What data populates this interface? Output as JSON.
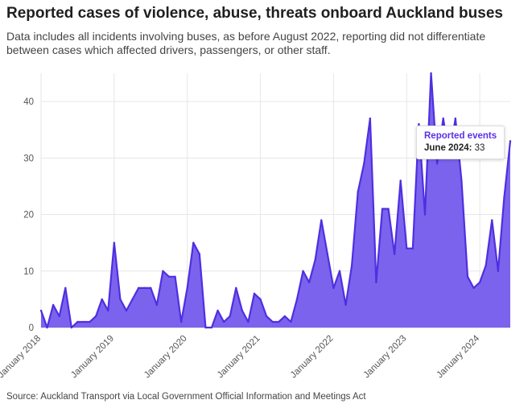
{
  "title": "Reported cases of violence, abuse, threats onboard Auckland buses",
  "subtitle": "Data includes all incidents involving buses, as before August 2022, reporting did not differentiate between cases which affected drivers, passengers, or other staff.",
  "source": "Source: Auckland Transport via Local Government Official Information and Meetings Act",
  "colors": {
    "fill": "#7b63ee",
    "line": "#4f2fe0",
    "grid": "#e6e6e6"
  },
  "tooltip": {
    "series": "Reported events",
    "date": "June 2024:",
    "value": "33"
  },
  "chart_data": {
    "type": "area",
    "title": "Reported cases of violence, abuse, threats onboard Auckland buses",
    "xlabel": "",
    "ylabel": "",
    "ylim": [
      0,
      45
    ],
    "yticks": [
      0,
      10,
      20,
      30,
      40
    ],
    "x_start": "January 2018",
    "x_end": "June 2024",
    "xtick_labels": [
      "January 2018",
      "January 2019",
      "January 2020",
      "January 2021",
      "January 2022",
      "January 2023",
      "January 2024"
    ],
    "xtick_month_index": [
      0,
      12,
      24,
      36,
      48,
      60,
      72
    ],
    "series": [
      {
        "name": "Reported events",
        "values": [
          3,
          0,
          4,
          2,
          7,
          0,
          1,
          1,
          1,
          2,
          5,
          3,
          15,
          5,
          3,
          5,
          7,
          7,
          7,
          4,
          10,
          9,
          9,
          1,
          7,
          15,
          13,
          0,
          0,
          3,
          1,
          2,
          7,
          3,
          1,
          6,
          5,
          2,
          1,
          1,
          2,
          1,
          5,
          10,
          8,
          12,
          19,
          13,
          7,
          10,
          4,
          11,
          24,
          29,
          37,
          8,
          21,
          21,
          13,
          26,
          14,
          14,
          36,
          20,
          45,
          29,
          37,
          30,
          37,
          26,
          9,
          7,
          8,
          11,
          19,
          10,
          23,
          33
        ]
      }
    ],
    "grid": true
  }
}
